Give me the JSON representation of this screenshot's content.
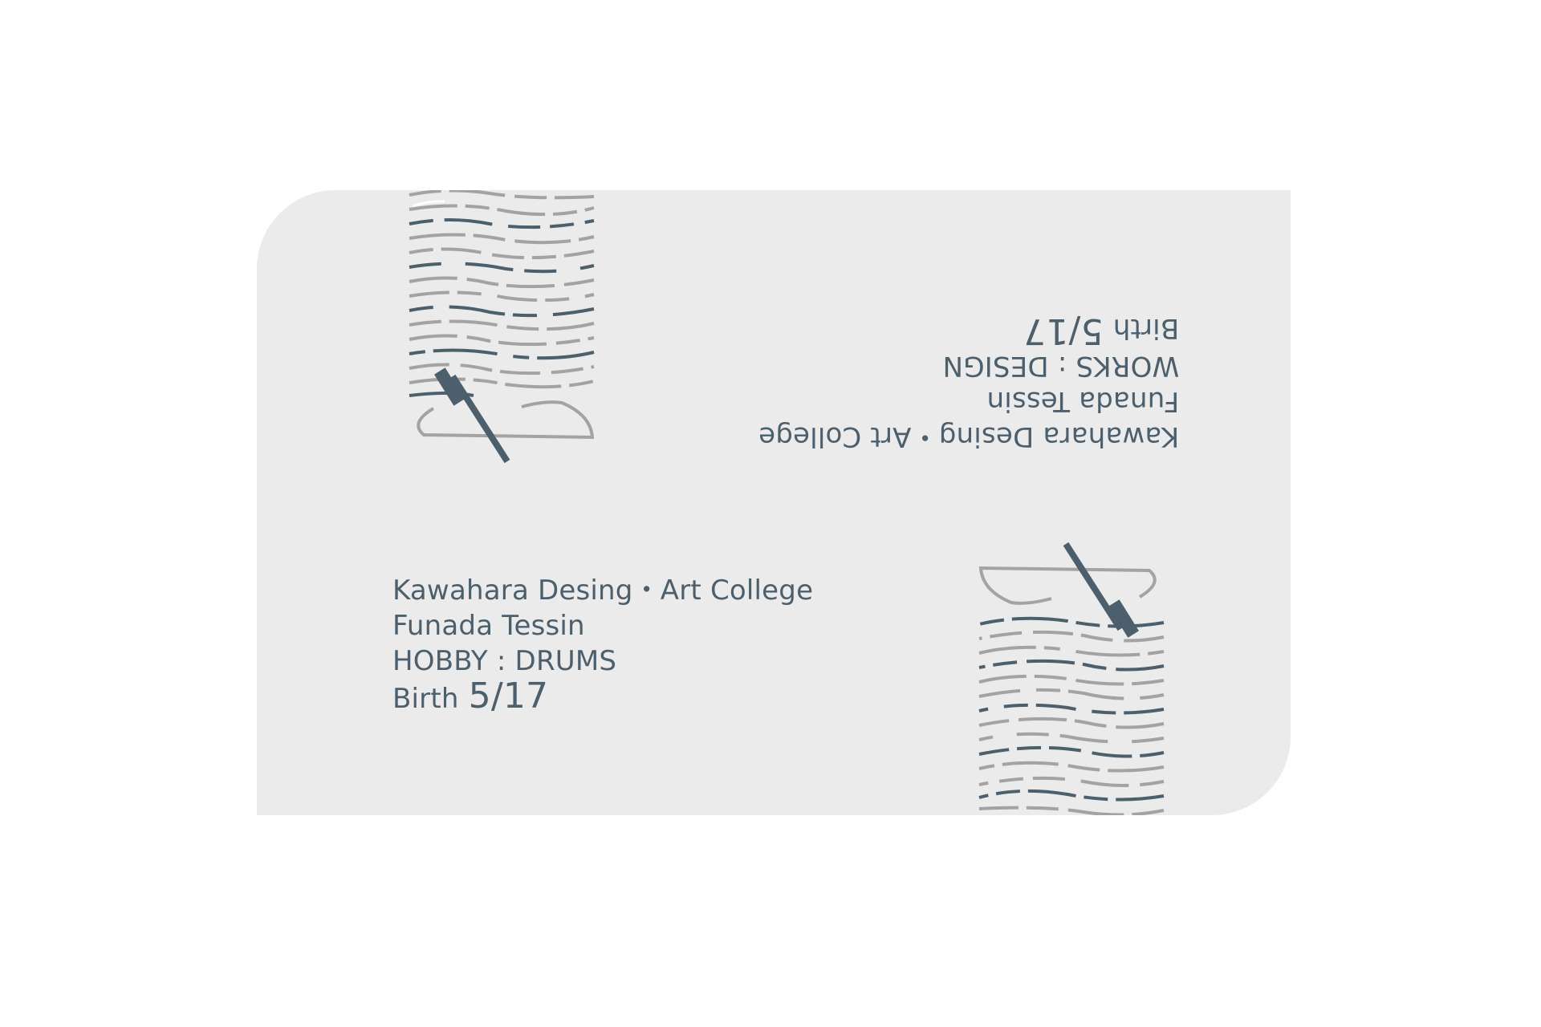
{
  "card": {
    "background": "#ebebeb",
    "accent_color": "#4c5f6d",
    "line_color": "#a3a3a3"
  },
  "front": {
    "line1": "Kawahara Desing・Art College",
    "line2": "Funada Tessin",
    "line3": "HOBBY : DRUMS",
    "birth_label": "Birth",
    "birth_value": "5/17"
  },
  "back": {
    "line1": "Kawahara Desing・Art College",
    "line2": "Funada Tessin",
    "line3": "WORKS : DESIGN",
    "birth_label": "Birth",
    "birth_value": "5/17"
  },
  "icons": {
    "top": "brush-wave-icon",
    "bottom": "brush-wave-icon"
  }
}
